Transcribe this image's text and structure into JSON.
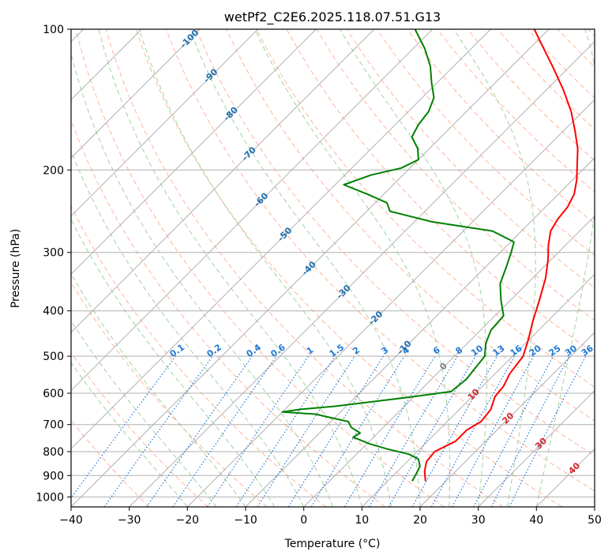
{
  "chart_data": {
    "type": "skew-t",
    "title": "wetPf2_C2E6.2025.118.07.51.G13",
    "xlabel": "Temperature (°C)",
    "ylabel": "Pressure (hPa)",
    "xlim": [
      -40,
      50
    ],
    "ylim": [
      1050,
      100
    ],
    "y_scale": "log",
    "grid": true,
    "x_ticks": [
      -40,
      -30,
      -20,
      -10,
      0,
      10,
      20,
      30,
      40,
      50
    ],
    "y_ticks": [
      100,
      200,
      300,
      400,
      500,
      600,
      700,
      800,
      900,
      1000
    ],
    "series": [
      {
        "role": "temperature",
        "color": "#ff0000",
        "points": [
          {
            "p": 925,
            "t": 16.5
          },
          {
            "p": 880,
            "t": 14.6
          },
          {
            "p": 840,
            "t": 13.3
          },
          {
            "p": 800,
            "t": 13.0
          },
          {
            "p": 760,
            "t": 14.8
          },
          {
            "p": 720,
            "t": 14.8
          },
          {
            "p": 690,
            "t": 15.8
          },
          {
            "p": 650,
            "t": 15.4
          },
          {
            "p": 610,
            "t": 13.9
          },
          {
            "p": 580,
            "t": 13.6
          },
          {
            "p": 545,
            "t": 12.5
          },
          {
            "p": 500,
            "t": 11.8
          },
          {
            "p": 460,
            "t": 9.8
          },
          {
            "p": 420,
            "t": 7.4
          },
          {
            "p": 380,
            "t": 5.0
          },
          {
            "p": 340,
            "t": 2.2
          },
          {
            "p": 310,
            "t": -0.6
          },
          {
            "p": 290,
            "t": -2.9
          },
          {
            "p": 270,
            "t": -5.0
          },
          {
            "p": 255,
            "t": -5.8
          },
          {
            "p": 240,
            "t": -6.2
          },
          {
            "p": 225,
            "t": -7.3
          },
          {
            "p": 210,
            "t": -9.3
          },
          {
            "p": 195,
            "t": -11.8
          },
          {
            "p": 180,
            "t": -14.5
          },
          {
            "p": 165,
            "t": -18.0
          },
          {
            "p": 150,
            "t": -22.0
          },
          {
            "p": 135,
            "t": -27.0
          },
          {
            "p": 120,
            "t": -33.0
          },
          {
            "p": 108,
            "t": -38.5
          },
          {
            "p": 100,
            "t": -42.5
          }
        ]
      },
      {
        "role": "dewpoint",
        "color": "#008000",
        "points": [
          {
            "p": 925,
            "t": 14.2
          },
          {
            "p": 890,
            "t": 13.6
          },
          {
            "p": 860,
            "t": 13.0
          },
          {
            "p": 830,
            "t": 11.5
          },
          {
            "p": 810,
            "t": 9.0
          },
          {
            "p": 790,
            "t": 4.5
          },
          {
            "p": 770,
            "t": 0.5
          },
          {
            "p": 745,
            "t": -3.5
          },
          {
            "p": 730,
            "t": -3.0
          },
          {
            "p": 710,
            "t": -5.5
          },
          {
            "p": 690,
            "t": -7.0
          },
          {
            "p": 665,
            "t": -14.0
          },
          {
            "p": 658,
            "t": -20.0
          },
          {
            "p": 650,
            "t": -17.5
          },
          {
            "p": 640,
            "t": -12.0
          },
          {
            "p": 625,
            "t": -6.0
          },
          {
            "p": 610,
            "t": 0.0
          },
          {
            "p": 595,
            "t": 5.5
          },
          {
            "p": 560,
            "t": 6.0
          },
          {
            "p": 530,
            "t": 5.6
          },
          {
            "p": 500,
            "t": 5.2
          },
          {
            "p": 470,
            "t": 3.2
          },
          {
            "p": 440,
            "t": 1.8
          },
          {
            "p": 410,
            "t": 1.5
          },
          {
            "p": 380,
            "t": -1.6
          },
          {
            "p": 350,
            "t": -4.6
          },
          {
            "p": 320,
            "t": -6.6
          },
          {
            "p": 300,
            "t": -8.1
          },
          {
            "p": 285,
            "t": -9.4
          },
          {
            "p": 270,
            "t": -15.0
          },
          {
            "p": 258,
            "t": -27.0
          },
          {
            "p": 245,
            "t": -36.0
          },
          {
            "p": 235,
            "t": -38.0
          },
          {
            "p": 225,
            "t": -43.0
          },
          {
            "p": 215,
            "t": -48.5
          },
          {
            "p": 205,
            "t": -45.5
          },
          {
            "p": 198,
            "t": -41.5
          },
          {
            "p": 190,
            "t": -40.0
          },
          {
            "p": 180,
            "t": -42.0
          },
          {
            "p": 170,
            "t": -45.0
          },
          {
            "p": 160,
            "t": -46.0
          },
          {
            "p": 150,
            "t": -46.5
          },
          {
            "p": 140,
            "t": -48.0
          },
          {
            "p": 130,
            "t": -51.0
          },
          {
            "p": 120,
            "t": -54.0
          },
          {
            "p": 110,
            "t": -58.0
          },
          {
            "p": 100,
            "t": -63.0
          }
        ]
      }
    ],
    "mixing_ratio_labels": [
      "0.1",
      "0.2",
      "0.4",
      "0.6",
      "1",
      "1.5",
      "2",
      "3",
      "4",
      "6",
      "8",
      "10",
      "13",
      "16",
      "20",
      "25",
      "30",
      "36"
    ],
    "isotherm_labels": [
      "-100",
      "-90",
      "-80",
      "-70",
      "-60",
      "-50",
      "-40",
      "-30",
      "-20",
      "-10",
      "0",
      "10",
      "20",
      "30",
      "40"
    ],
    "colors": {
      "temperature": "#ff0000",
      "dewpoint": "#008000",
      "isotherm": "#b0b0b0",
      "dry_adiabat": "#ffb49b",
      "moist_adiabat": "#9fd39f",
      "mixing_ratio": "#1f78d8",
      "isotherm_label": "#1f6fb0",
      "isotherm_label_warm": "#d62728",
      "isotherm_label_zero": "#7f7f7f"
    }
  }
}
